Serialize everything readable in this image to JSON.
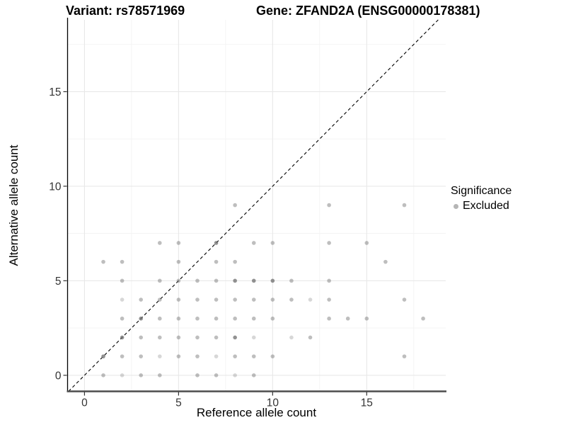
{
  "header": {
    "variant_title": "Variant: rs78571969",
    "gene_title": "Gene: ZFAND2A (ENSG00000178381)"
  },
  "legend": {
    "title": "Significance",
    "items": [
      {
        "label": "Excluded",
        "color": "#b5b5b5"
      }
    ]
  },
  "colors": {
    "point_base": "#6e6e6e",
    "grid_major": "#e8e8e8",
    "grid_minor": "#f3f3f3",
    "axis_left": "#000000",
    "axis_bottom": "#4d4d4d",
    "tick_text": "#333333",
    "identity_line": "#000000"
  },
  "chart_data": {
    "type": "scatter",
    "title_left": "Variant: rs78571969",
    "title_right": "Gene: ZFAND2A (ENSG00000178381)",
    "xlabel": "Reference allele count",
    "ylabel": "Alternative allele count",
    "xlim": [
      -0.9,
      19.2
    ],
    "ylim": [
      -0.85,
      18.8
    ],
    "x_ticks": [
      0,
      5,
      10,
      15
    ],
    "y_ticks": [
      0,
      5,
      10,
      15
    ],
    "x_minor": [
      2.5,
      7.5,
      12.5,
      17.5
    ],
    "y_minor": [
      2.5,
      7.5,
      12.5,
      17.5
    ],
    "grid": true,
    "legend_position": "right",
    "identity_line": {
      "slope": 1,
      "intercept": 0,
      "style": "dashed"
    },
    "series": [
      {
        "name": "Excluded",
        "alpha_levels": {
          "n": 0.45,
          "d": 0.75,
          "f": 0.28
        },
        "points": [
          [
            1,
            0,
            "n"
          ],
          [
            2,
            0,
            "f"
          ],
          [
            3,
            0,
            "n"
          ],
          [
            4,
            0,
            "n"
          ],
          [
            6,
            0,
            "n"
          ],
          [
            7,
            0,
            "n"
          ],
          [
            8,
            0,
            "f"
          ],
          [
            9,
            0,
            "n"
          ],
          [
            1,
            1,
            "d"
          ],
          [
            2,
            1,
            "n"
          ],
          [
            3,
            1,
            "n"
          ],
          [
            4,
            1,
            "f"
          ],
          [
            5,
            1,
            "n"
          ],
          [
            6,
            1,
            "n"
          ],
          [
            7,
            1,
            "f"
          ],
          [
            8,
            1,
            "n"
          ],
          [
            9,
            1,
            "n"
          ],
          [
            10,
            1,
            "n"
          ],
          [
            17,
            1,
            "n"
          ],
          [
            2,
            2,
            "d"
          ],
          [
            3,
            2,
            "n"
          ],
          [
            4,
            2,
            "n"
          ],
          [
            5,
            2,
            "n"
          ],
          [
            6,
            2,
            "n"
          ],
          [
            7,
            2,
            "n"
          ],
          [
            8,
            2,
            "d"
          ],
          [
            9,
            2,
            "f"
          ],
          [
            11,
            2,
            "f"
          ],
          [
            12,
            2,
            "n"
          ],
          [
            2,
            3,
            "n"
          ],
          [
            3,
            3,
            "d"
          ],
          [
            4,
            3,
            "n"
          ],
          [
            5,
            3,
            "n"
          ],
          [
            6,
            3,
            "n"
          ],
          [
            7,
            3,
            "n"
          ],
          [
            8,
            3,
            "n"
          ],
          [
            9,
            3,
            "n"
          ],
          [
            10,
            3,
            "n"
          ],
          [
            13,
            3,
            "n"
          ],
          [
            14,
            3,
            "n"
          ],
          [
            15,
            3,
            "n"
          ],
          [
            18,
            3,
            "n"
          ],
          [
            2,
            4,
            "f"
          ],
          [
            3,
            4,
            "n"
          ],
          [
            4,
            4,
            "n"
          ],
          [
            5,
            4,
            "n"
          ],
          [
            6,
            4,
            "n"
          ],
          [
            7,
            4,
            "n"
          ],
          [
            8,
            4,
            "n"
          ],
          [
            9,
            4,
            "n"
          ],
          [
            10,
            4,
            "n"
          ],
          [
            11,
            4,
            "n"
          ],
          [
            12,
            4,
            "f"
          ],
          [
            13,
            4,
            "n"
          ],
          [
            17,
            4,
            "n"
          ],
          [
            2,
            5,
            "n"
          ],
          [
            4,
            5,
            "n"
          ],
          [
            5,
            5,
            "n"
          ],
          [
            6,
            5,
            "n"
          ],
          [
            7,
            5,
            "n"
          ],
          [
            8,
            5,
            "d"
          ],
          [
            9,
            5,
            "d"
          ],
          [
            10,
            5,
            "d"
          ],
          [
            11,
            5,
            "n"
          ],
          [
            13,
            5,
            "n"
          ],
          [
            1,
            6,
            "n"
          ],
          [
            2,
            6,
            "n"
          ],
          [
            5,
            6,
            "n"
          ],
          [
            7,
            6,
            "n"
          ],
          [
            8,
            6,
            "n"
          ],
          [
            16,
            6,
            "n"
          ],
          [
            4,
            7,
            "n"
          ],
          [
            5,
            7,
            "n"
          ],
          [
            7,
            7,
            "d"
          ],
          [
            9,
            7,
            "n"
          ],
          [
            10,
            7,
            "n"
          ],
          [
            13,
            7,
            "n"
          ],
          [
            15,
            7,
            "n"
          ],
          [
            8,
            9,
            "n"
          ],
          [
            13,
            9,
            "n"
          ],
          [
            17,
            9,
            "n"
          ]
        ]
      }
    ]
  }
}
